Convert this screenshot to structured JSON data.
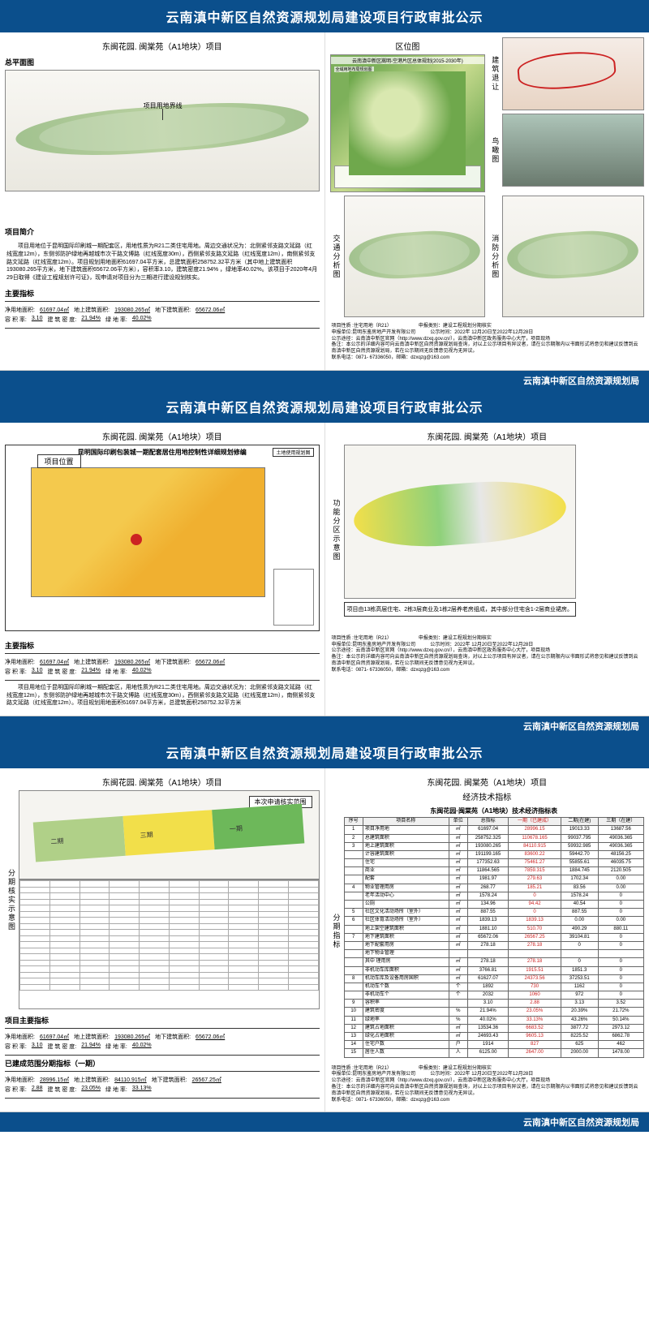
{
  "global": {
    "header_title": "云南滇中新区自然资源规划局建设项目行政审批公示",
    "footer_org": "云南滇中新区自然资源规划局",
    "project_title": "东闽花园. 闽棠苑（A1地块）项目"
  },
  "page1": {
    "left": {
      "master_plan_label": "总平面图",
      "boundary_label": "项目用地界线",
      "intro_title": "项目简介",
      "intro_body": "项目用地位于昆明国际印刷城一期配套区，用地性质为R21二类住宅用地。周边交通状况为：北侧紧邻支路文延路（红线宽度12m），东侧邻防护绿地再越城市次干路文博路（红线宽度30m），西侧紧邻支路文延路（红线宽度12m），南侧紧邻支路文延路（红线宽度12m）。项目规划用地面积61697.04平方米，总建筑面积258752.32平方米（其中地上建筑面积193080.265平方米，地下建筑面积65672.06平方米），容积率3.10，建筑密度21.94% ，绿地率40.02%。该项目于2020年4月29日取得《建设工程规划许可证》，现申请对项目分为三期进行建设规划核实。",
      "metrics_title": "主要指标",
      "m": {
        "land_area_label": "净用地面积:",
        "land_area": "61697.04㎡",
        "above_label": "地上建筑面积:",
        "above": "193080.265㎡",
        "below_label": "地下建筑面积:",
        "below": "65672.06㎡",
        "far_label": "容 积 率:",
        "far": "3.10",
        "density_label": "建 筑 密 度:",
        "density": "21.94%",
        "green_label": "绿 地 率:",
        "green": "40.02%"
      }
    },
    "right": {
      "location_title": "区位图",
      "location_sub": "云南滇中新区嵩明-空港片区总体规划(2015-2030年)",
      "landuse_sub": "全域用地布局规划图",
      "setback_label": "建筑退让",
      "aerial_label": "鸟瞰图",
      "traffic_label": "交通分析图",
      "fire_label": "消防分析图",
      "info": {
        "nature": "项目性质 :住宅用地（R21）",
        "applicant": "申报单位:昆明东鉴房地产开发有限公司",
        "approval_type": "申报类别：建设工程规划分期核实",
        "period": "公示时间：2022年 12月20日至2022年12月28日",
        "channel": "公示途径：云南滇中新区官网（http://www.dzxq.gov.cn/），云南滇中新区政务服务中心大厅，项目现场",
        "note": "备注：本公示的详细内容可向云南滇中新区自然资源规划局查询，对以上公示项目有异议者，请在公示期限内以书面形式将意见和建议反馈到云南滇中新区自然资源规划局，若在公示期间无反馈意见视为无异议。",
        "contact": "联系电话：0871- 67336050，邮箱：dzxqzg@163.com"
      }
    }
  },
  "page2": {
    "left": {
      "plan_title": "昆明国际印刷包装城一期配套居住用地控制性详细规划修编",
      "callout": "项目位置",
      "landuse_label": "土地使用规划图",
      "metrics_title": "主要指标",
      "desc": "项目用地位于昆明国际印刷城一期配套区，用地性质为R21二类住宅用地。周边交通状况为：北侧紧邻支路文延路（红线宽度12m），东侧邻防护绿地再越城市次干路文博路（红线宽度30m），西侧紧邻支路文延路（红线宽度12m），南侧紧邻支路文延路（红线宽度12m）。项目规划用地面积61697.04平方米，总建筑面积258752.32平方米"
    },
    "right": {
      "func_label": "功能分区示意图",
      "note": "项目由13栋高层住宅、2栋3层商业及1栋2层养老房组成，其中部分住宅含1-2层商业裙房。"
    }
  },
  "page3": {
    "left": {
      "phase_label": "分期核实示意图",
      "phase_callout": "本次申请核实范围",
      "phases": {
        "p1": "一期",
        "p2": "二期",
        "p3": "三期"
      },
      "main_metrics_title": "项目主要指标",
      "built_metrics_title": "已建成范围分期指标（一期）",
      "built": {
        "land_area": "28996.15㎡",
        "above": "84110.915㎡",
        "below": "26567.25㎡",
        "far": "2.88",
        "density": "23.05%",
        "green": "33.13%"
      }
    },
    "right": {
      "econ_title_sub": "经济技术指标",
      "phase_metrics_label": "分期指标",
      "table_title": "东闽花园·闽棠苑（A1地块）技术经济指标表",
      "header": {
        "seq": "序号",
        "name": "项目名称",
        "unit": "单位",
        "total": "总指标",
        "p1": "一期（已建成）",
        "p2": "二期(在建)",
        "p3": "三期（在建）"
      },
      "rows": [
        {
          "seq": "1",
          "name": "项目净用地",
          "unit": "㎡",
          "total": "61697.04",
          "p1": "28996.15",
          "p2": "19013.33",
          "p3": "13687.56"
        },
        {
          "seq": "2",
          "name": "总建筑面积",
          "unit": "㎡",
          "total": "258752.325",
          "p1": "110678.165",
          "p2": "99037.795",
          "p3": "49036.365"
        },
        {
          "seq": "3",
          "name": "地上建筑面积",
          "unit": "㎡",
          "total": "193080.265",
          "p1": "84110.915",
          "p2": "59932.985",
          "p3": "49036.365"
        },
        {
          "seq": "",
          "name": "计容建筑面积",
          "unit": "㎡",
          "total": "191199.165",
          "p1": "83600.22",
          "p2": "59442.70",
          "p3": "48156.25"
        },
        {
          "seq": "",
          "name": "住宅",
          "unit": "㎡",
          "total": "177352.63",
          "p1": "75461.27",
          "p2": "55855.61",
          "p3": "46035.75"
        },
        {
          "seq": "",
          "name": "商业",
          "unit": "㎡",
          "total": "11864.565",
          "p1": "7859.315",
          "p2": "1884.745",
          "p3": "2120.505"
        },
        {
          "seq": "",
          "name": "配套",
          "unit": "㎡",
          "total": "1981.97",
          "p1": "279.63",
          "p2": "1702.34",
          "p3": "0.00"
        },
        {
          "seq": "4",
          "name": "物业管理用房",
          "unit": "㎡",
          "total": "268.77",
          "p1": "185.21",
          "p2": "83.56",
          "p3": "0.00"
        },
        {
          "seq": "",
          "name": "老年活动中心",
          "unit": "㎡",
          "total": "1578.24",
          "p1": "0",
          "p2": "1578.24",
          "p3": "0"
        },
        {
          "seq": "",
          "name": "公厕",
          "unit": "㎡",
          "total": "134.96",
          "p1": "94.42",
          "p2": "40.54",
          "p3": "0"
        },
        {
          "seq": "5",
          "name": "社区文化活动场所（室外）",
          "unit": "㎡",
          "total": "887.55",
          "p1": "0",
          "p2": "887.55",
          "p3": "0"
        },
        {
          "seq": "6",
          "name": "社区体育活动场所（室外）",
          "unit": "㎡",
          "total": "1839.13",
          "p1": "1839.13",
          "p2": "0.00",
          "p3": "0.00"
        },
        {
          "seq": "",
          "name": "地上架空建筑面积",
          "unit": "㎡",
          "total": "1881.10",
          "p1": "510.70",
          "p2": "490.29",
          "p3": "880.11"
        },
        {
          "seq": "7",
          "name": "地下建筑面积",
          "unit": "㎡",
          "total": "65672.06",
          "p1": "26567.25",
          "p2": "39104.81",
          "p3": "0"
        },
        {
          "seq": "",
          "name": "地下配套用房",
          "unit": "㎡",
          "total": "278.18",
          "p1": "278.18",
          "p2": "0",
          "p3": "0"
        },
        {
          "seq": "",
          "name": "地下物业管理",
          "unit": "",
          "total": "",
          "p1": "",
          "p2": "",
          "p3": ""
        },
        {
          "seq": "",
          "name": "其中  理用房",
          "unit": "㎡",
          "total": "278.18",
          "p1": "278.18",
          "p2": "0",
          "p3": "0"
        },
        {
          "seq": "",
          "name": "非机动车库面积",
          "unit": "㎡",
          "total": "3766.81",
          "p1": "1915.51",
          "p2": "1851.3",
          "p3": "0"
        },
        {
          "seq": "8",
          "name": "机动车库及设备用房国积",
          "unit": "㎡",
          "total": "61627.07",
          "p1": "24373.56",
          "p2": "37253.51",
          "p3": "0"
        },
        {
          "seq": "",
          "name": "机动车个数",
          "unit": "个",
          "total": "1892",
          "p1": "730",
          "p2": "1162",
          "p3": "0"
        },
        {
          "seq": "",
          "name": "非机动车个",
          "unit": "个",
          "total": "2032",
          "p1": "1060",
          "p2": "972",
          "p3": "0"
        },
        {
          "seq": "9",
          "name": "容积率",
          "unit": "",
          "total": "3.10",
          "p1": "2.88",
          "p2": "3.13",
          "p3": "3.52"
        },
        {
          "seq": "10",
          "name": "建筑密度",
          "unit": "%",
          "total": "21.94%",
          "p1": "23.05%",
          "p2": "20.39%",
          "p3": "21.72%"
        },
        {
          "seq": "11",
          "name": "绿地率",
          "unit": "%",
          "total": "40.02%",
          "p1": "33.13%",
          "p2": "43.26%",
          "p3": "50.14%"
        },
        {
          "seq": "12",
          "name": "建筑占地面积",
          "unit": "㎡",
          "total": "13534.36",
          "p1": "6683.52",
          "p2": "3877.72",
          "p3": "2973.12"
        },
        {
          "seq": "13",
          "name": "绿化占地面积",
          "unit": "㎡",
          "total": "24693.43",
          "p1": "9605.13",
          "p2": "8225.52",
          "p3": "6862.78"
        },
        {
          "seq": "14",
          "name": "住宅户数",
          "unit": "户",
          "total": "1914",
          "p1": "827",
          "p2": "625",
          "p3": "462"
        },
        {
          "seq": "15",
          "name": "居住人数",
          "unit": "人",
          "total": "6125.00",
          "p1": "2647.00",
          "p2": "2000.00",
          "p3": "1478.00"
        }
      ]
    }
  }
}
